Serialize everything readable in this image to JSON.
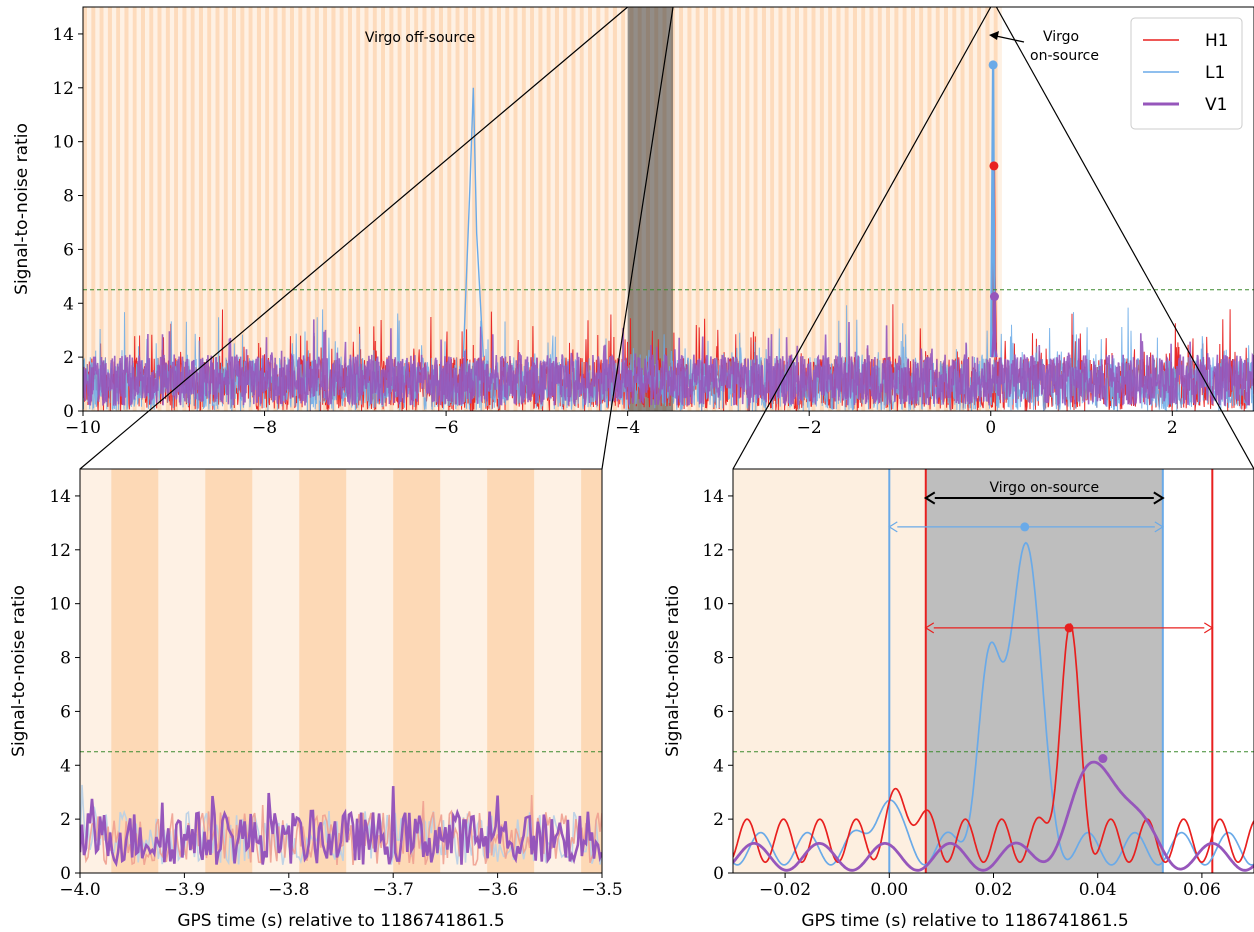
{
  "chart_data": [
    {
      "id": "top",
      "type": "line",
      "xlim": [
        -10,
        2.9
      ],
      "ylim": [
        0,
        15
      ],
      "x_ticks": [
        -10,
        -8,
        -6,
        -4,
        -2,
        0,
        2
      ],
      "y_ticks": [
        0,
        2,
        4,
        6,
        8,
        10,
        12,
        14
      ],
      "ylabel": "Signal-to-noise ratio",
      "threshold": 4.5,
      "offsource_region": [
        -10,
        0.05
      ],
      "zoom_region": [
        -4,
        -3.5
      ],
      "annotations": {
        "offsource": "Virgo off-source",
        "onsource_line1": "Virgo",
        "onsource_line2": "on-source"
      },
      "series": [
        {
          "name": "H1",
          "color": "#e8201f",
          "peaks": [
            {
              "x": 0.035,
              "y": 9.1
            }
          ]
        },
        {
          "name": "L1",
          "color": "#6aaae8",
          "peaks": [
            {
              "x": -5.7,
              "y": 12.0
            },
            {
              "x": 0.026,
              "y": 12.85
            }
          ]
        },
        {
          "name": "V1",
          "color": "#9656bb",
          "peaks": [
            {
              "x": 0.041,
              "y": 4.25
            }
          ]
        }
      ],
      "legend": {
        "position": "top-right",
        "entries": [
          "H1",
          "L1",
          "V1"
        ]
      }
    },
    {
      "id": "bottom-left",
      "type": "line",
      "xlim": [
        -4.0,
        -3.5
      ],
      "ylim": [
        0,
        15
      ],
      "x_ticks": [
        -4.0,
        -3.9,
        -3.8,
        -3.7,
        -3.6,
        -3.5
      ],
      "y_ticks": [
        0,
        2,
        4,
        6,
        8,
        10,
        12,
        14
      ],
      "xlabel": "GPS time (s) relative to 1186741861.5",
      "ylabel": "Signal-to-noise ratio",
      "threshold": 4.5
    },
    {
      "id": "bottom-right",
      "type": "line",
      "xlim": [
        -0.03,
        0.07
      ],
      "ylim": [
        0,
        15
      ],
      "x_ticks": [
        -0.02,
        0.0,
        0.02,
        0.04,
        0.06
      ],
      "y_ticks": [
        0,
        2,
        4,
        6,
        8,
        10,
        12,
        14
      ],
      "xlabel": "GPS time (s) relative to 1186741861.5",
      "ylabel": "Signal-to-noise ratio",
      "threshold": 4.5,
      "onsource_label": "Virgo on-source",
      "onsource_window": [
        0.007,
        0.0525
      ],
      "l1_window": [
        0.0,
        0.0525
      ],
      "h1_window": [
        0.007,
        0.062
      ],
      "peaks": [
        {
          "series": "L1",
          "x": 0.026,
          "y": 12.85
        },
        {
          "series": "H1",
          "x": 0.0345,
          "y": 9.1
        },
        {
          "series": "V1",
          "x": 0.041,
          "y": 4.25
        }
      ]
    }
  ]
}
